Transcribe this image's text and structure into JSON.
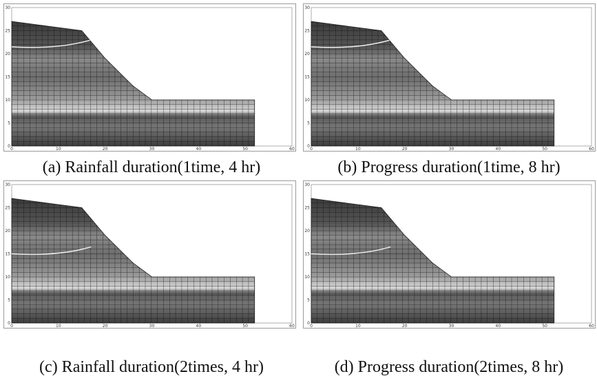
{
  "panels": [
    {
      "caption": "(a) Rainfall duration(1time, 4 hr)",
      "yticks": [
        0,
        5,
        10,
        15,
        20,
        25,
        30
      ],
      "xticks": [
        0,
        10,
        20,
        30,
        40,
        50,
        60
      ]
    },
    {
      "caption": "(b) Progress duration(1time, 8 hr)",
      "yticks": [
        0,
        5,
        10,
        15,
        20,
        25,
        30
      ],
      "xticks": [
        0,
        10,
        20,
        30,
        40,
        50,
        60
      ]
    },
    {
      "caption": "(c) Rainfall duration(2times, 4 hr)",
      "yticks": [
        0,
        5,
        10,
        15,
        20,
        25,
        30
      ],
      "xticks": [
        0,
        10,
        20,
        30,
        40,
        50,
        60
      ]
    },
    {
      "caption": "(d) Progress duration(2times, 8 hr)",
      "yticks": [
        0,
        5,
        10,
        15,
        20,
        25,
        30
      ],
      "xticks": [
        0,
        10,
        20,
        30,
        40,
        50,
        60
      ]
    }
  ]
}
